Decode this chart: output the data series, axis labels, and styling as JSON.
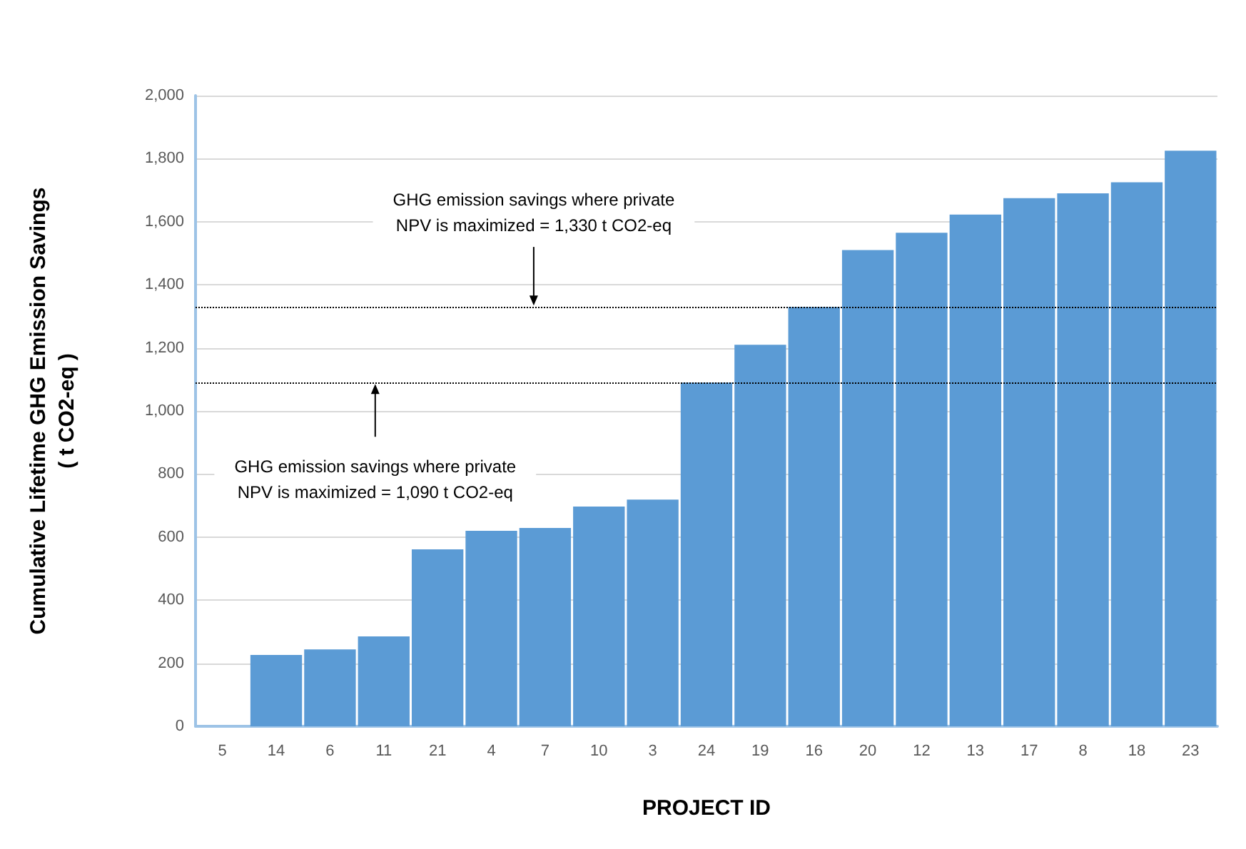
{
  "chart_data": {
    "type": "bar",
    "xlabel": "PROJECT ID",
    "ylabel": "Cumulative Lifetime GHG Emission Savings\n( t CO2-eq )",
    "categories": [
      "5",
      "14",
      "6",
      "11",
      "21",
      "4",
      "7",
      "10",
      "3",
      "24",
      "19",
      "16",
      "20",
      "12",
      "13",
      "17",
      "8",
      "18",
      "23"
    ],
    "values": [
      0,
      226,
      244,
      285,
      561,
      620,
      629,
      697,
      719,
      1090,
      1210,
      1330,
      1510,
      1565,
      1623,
      1675,
      1690,
      1725,
      1825
    ],
    "color": "#5b9bd5",
    "ylim": [
      0,
      2000
    ],
    "yticks": [
      {
        "value": 0,
        "label": "0"
      },
      {
        "value": 200,
        "label": "200"
      },
      {
        "value": 400,
        "label": "400"
      },
      {
        "value": 600,
        "label": "600"
      },
      {
        "value": 800,
        "label": "800"
      },
      {
        "value": 1000,
        "label": "1,000"
      },
      {
        "value": 1200,
        "label": "1,200"
      },
      {
        "value": 1400,
        "label": "1,400"
      },
      {
        "value": 1600,
        "label": "1,600"
      },
      {
        "value": 1800,
        "label": "1,800"
      },
      {
        "value": 2000,
        "label": "2,000"
      }
    ],
    "grid": "y",
    "ref_lines": [
      {
        "axis": "y",
        "value": 1330,
        "label": "GHG emission savings where private\nNPV is maximized = 1,330 t CO2-eq",
        "color": "#000000",
        "line_style": "dotted"
      },
      {
        "axis": "y",
        "value": 1090,
        "label": "GHG emission savings where private\nNPV is maximized = 1,090 t CO2-eq",
        "color": "#000000",
        "line_style": "dotted"
      }
    ]
  }
}
